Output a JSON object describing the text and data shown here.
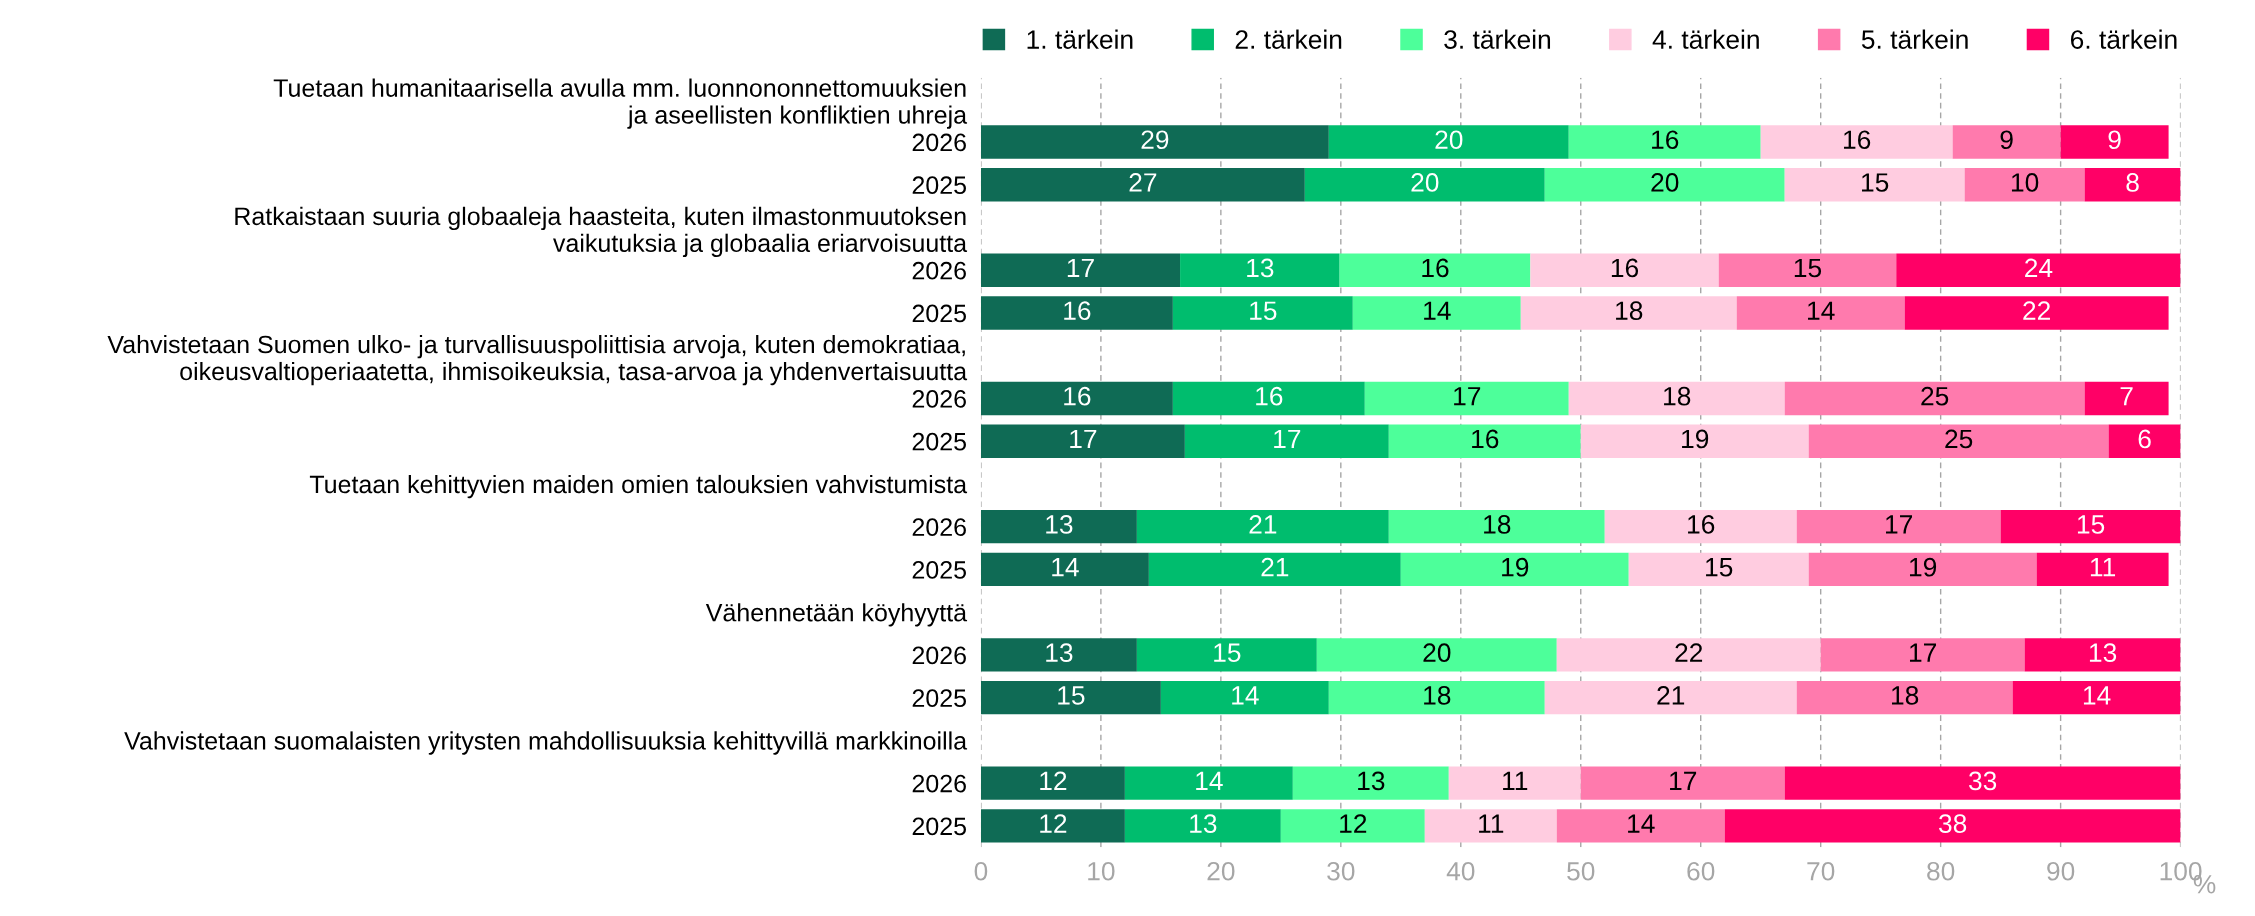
{
  "chart_data": {
    "type": "bar",
    "orientation": "horizontal",
    "stacked": true,
    "grid": "x",
    "legend": "top",
    "xlabel": "%",
    "xlim": [
      0,
      100
    ],
    "xticks": [
      0,
      10,
      20,
      30,
      40,
      50,
      60,
      70,
      80,
      90,
      100
    ],
    "categories": [
      "Tuetaan humanitaarisella avulla mm. luonnononnettomuuksien\nja aseellisten konfliktien uhreja",
      "2026",
      "2025",
      "Ratkaistaan suuria globaaleja haasteita, kuten ilmastonmuutoksen\nvaikutuksia ja globaalia eriarvoisuutta",
      "2026",
      "2025",
      "Vahvistetaan Suomen ulko- ja turvallisuuspoliittisia arvoja, kuten demokratiaa,\noikeusvaltioperiaatetta, ihmisoikeuksia, tasa-arvoa ja yhdenvertaisuutta",
      "2026",
      "2025",
      "Tuetaan kehittyvien maiden omien talouksien vahvistumista",
      "2026",
      "2025",
      "Vähennetään köyhyyttä",
      "2026",
      "2025",
      "Vahvistetaan suomalaisten yritysten mahdollisuuksia kehittyvillä markkinoilla",
      "2026",
      "2025"
    ],
    "series": [
      {
        "name": "1. tärkein",
        "color": "#0f6b55",
        "values": [
          null,
          29,
          27,
          null,
          16.6,
          16,
          null,
          16,
          17,
          null,
          13,
          14,
          null,
          13,
          15,
          null,
          12,
          12
        ],
        "value_labels": [
          null,
          "29",
          "27",
          null,
          "17",
          "16",
          null,
          "16",
          "17",
          null,
          "13",
          "14",
          null,
          "13",
          "15",
          null,
          "12",
          "12"
        ]
      },
      {
        "name": "2. tärkein",
        "color": "#00bd6e",
        "values": [
          null,
          20,
          20,
          null,
          13.3,
          15,
          null,
          16,
          17,
          null,
          21,
          21,
          null,
          15,
          14,
          null,
          14,
          13
        ],
        "value_labels": [
          null,
          "20",
          "20",
          null,
          "13",
          "15",
          null,
          "16",
          "17",
          null,
          "21",
          "21",
          null,
          "15",
          "14",
          null,
          "14",
          "13"
        ]
      },
      {
        "name": "3. tärkein",
        "color": "#4dff9a",
        "values": [
          null,
          16,
          20,
          null,
          15.9,
          14,
          null,
          17,
          16,
          null,
          18,
          19,
          null,
          20,
          18,
          null,
          13,
          12
        ],
        "value_labels": [
          null,
          "16",
          "20",
          null,
          "16",
          "14",
          null,
          "17",
          "16",
          null,
          "18",
          "19",
          null,
          "20",
          "18",
          null,
          "13",
          "12"
        ]
      },
      {
        "name": "4. tärkein",
        "color": "#ffcce0",
        "values": [
          null,
          16,
          15,
          null,
          15.7,
          18,
          null,
          18,
          19,
          null,
          16,
          15,
          null,
          22,
          21,
          null,
          11,
          11
        ],
        "value_labels": [
          null,
          "16",
          "15",
          null,
          "16",
          "18",
          null,
          "18",
          "19",
          null,
          "16",
          "15",
          null,
          "22",
          "21",
          null,
          "11",
          "11"
        ]
      },
      {
        "name": "5. tärkein",
        "color": "#ff7aad",
        "values": [
          null,
          9,
          10,
          null,
          14.8,
          14,
          null,
          25,
          25,
          null,
          17,
          19,
          null,
          17,
          18,
          null,
          17,
          14
        ],
        "value_labels": [
          null,
          "9",
          "10",
          null,
          "15",
          "14",
          null,
          "25",
          "25",
          null,
          "17",
          "19",
          null,
          "17",
          "18",
          null,
          "17",
          "14"
        ]
      },
      {
        "name": "6. tärkein",
        "color": "#ff0066",
        "values": [
          null,
          9,
          8,
          null,
          23.7,
          22,
          null,
          7,
          6,
          null,
          15,
          11,
          null,
          13,
          14,
          null,
          33,
          38
        ],
        "value_labels": [
          null,
          "9",
          "8",
          null,
          "24",
          "22",
          null,
          "7",
          "6",
          null,
          "15",
          "11",
          null,
          "13",
          "14",
          null,
          "33",
          "38"
        ]
      }
    ]
  }
}
